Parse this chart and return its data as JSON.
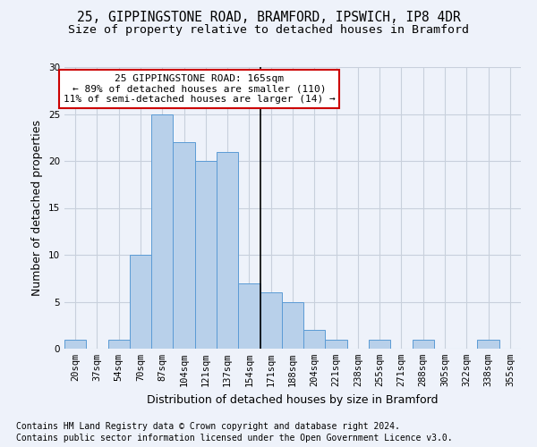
{
  "title_line1": "25, GIPPINGSTONE ROAD, BRAMFORD, IPSWICH, IP8 4DR",
  "title_line2": "Size of property relative to detached houses in Bramford",
  "xlabel": "Distribution of detached houses by size in Bramford",
  "ylabel": "Number of detached properties",
  "bar_labels": [
    "20sqm",
    "37sqm",
    "54sqm",
    "70sqm",
    "87sqm",
    "104sqm",
    "121sqm",
    "137sqm",
    "154sqm",
    "171sqm",
    "188sqm",
    "204sqm",
    "221sqm",
    "238sqm",
    "255sqm",
    "271sqm",
    "288sqm",
    "305sqm",
    "322sqm",
    "338sqm",
    "355sqm"
  ],
  "bar_values": [
    1,
    0,
    1,
    10,
    25,
    22,
    20,
    21,
    7,
    6,
    5,
    2,
    1,
    0,
    1,
    0,
    1,
    0,
    0,
    1,
    0
  ],
  "bar_color": "#b8d0ea",
  "bar_edge_color": "#5b9bd5",
  "vline_index": 8.5,
  "vline_color": "#000000",
  "annotation_text": "25 GIPPINGSTONE ROAD: 165sqm\n← 89% of detached houses are smaller (110)\n11% of semi-detached houses are larger (14) →",
  "annotation_box_color": "#ffffff",
  "annotation_box_edge_color": "#cc0000",
  "ylim": [
    0,
    30
  ],
  "yticks": [
    0,
    5,
    10,
    15,
    20,
    25,
    30
  ],
  "grid_color": "#c8d0dc",
  "bg_color": "#eef2fa",
  "footer_line1": "Contains HM Land Registry data © Crown copyright and database right 2024.",
  "footer_line2": "Contains public sector information licensed under the Open Government Licence v3.0.",
  "title_fontsize": 10.5,
  "subtitle_fontsize": 9.5,
  "axis_label_fontsize": 9,
  "tick_fontsize": 7.5,
  "annotation_fontsize": 8,
  "footer_fontsize": 7
}
